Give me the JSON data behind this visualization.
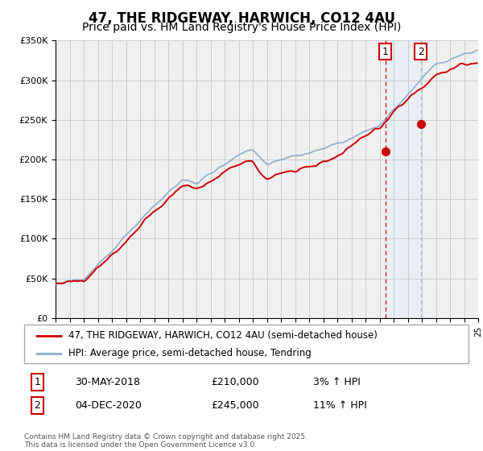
{
  "title": "47, THE RIDGEWAY, HARWICH, CO12 4AU",
  "subtitle": "Price paid vs. HM Land Registry's House Price Index (HPI)",
  "legend_line1": "47, THE RIDGEWAY, HARWICH, CO12 4AU (semi-detached house)",
  "legend_line2": "HPI: Average price, semi-detached house, Tendring",
  "footer": "Contains HM Land Registry data © Crown copyright and database right 2025.\nThis data is licensed under the Open Government Licence v3.0.",
  "sale1_label": "1",
  "sale1_date": "30-MAY-2018",
  "sale1_price": "£210,000",
  "sale1_hpi": "3% ↑ HPI",
  "sale2_label": "2",
  "sale2_date": "04-DEC-2020",
  "sale2_price": "£245,000",
  "sale2_hpi": "11% ↑ HPI",
  "sale1_year": 2018.41,
  "sale1_value": 210000,
  "sale2_year": 2020.92,
  "sale2_value": 245000,
  "ymin": 0,
  "ymax": 350000,
  "xmin": 1995,
  "xmax": 2025,
  "price_color": "#cc0000",
  "hpi_color": "#88aacc",
  "vline1_color": "#cc0000",
  "vline2_color": "#aabbdd",
  "shade_color": "#ddeeff",
  "background_color": "#f0f0f0",
  "grid_color": "#cccccc",
  "title_fontsize": 12,
  "subtitle_fontsize": 10
}
